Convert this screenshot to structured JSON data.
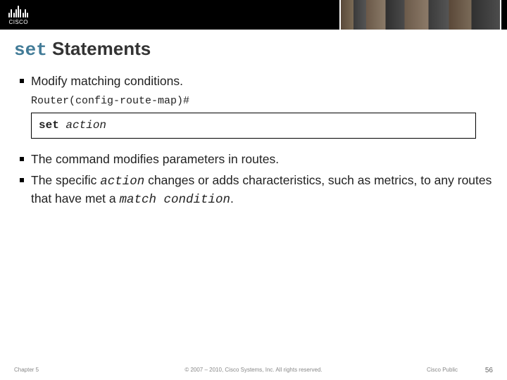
{
  "logo": {
    "text": "CISCO"
  },
  "title": {
    "code": "set",
    "rest": " Statements"
  },
  "bullets": {
    "intro": "Modify matching conditions.",
    "b1_pre": "The command modifies parameters in routes.",
    "b2_part1": "The specific ",
    "b2_code1": "action",
    "b2_part2": " changes or adds characteristics, such as metrics, to any routes that have met a ",
    "b2_code2": "match condition",
    "b2_part3": "."
  },
  "prompt": "Router(config-route-map)#",
  "command": {
    "kw": "set",
    "arg": "action"
  },
  "footer": {
    "chapter": "Chapter 5",
    "copyright": "© 2007 – 2010, Cisco Systems, Inc. All rights reserved.",
    "public": "Cisco Public",
    "page": "56"
  }
}
